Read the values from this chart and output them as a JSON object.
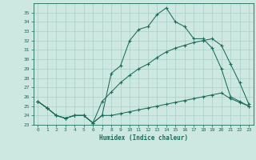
{
  "xlabel": "Humidex (Indice chaleur)",
  "xlim": [
    -0.5,
    23.5
  ],
  "ylim": [
    23,
    36
  ],
  "yticks": [
    23,
    24,
    25,
    26,
    27,
    28,
    29,
    30,
    31,
    32,
    33,
    34,
    35
  ],
  "xticks": [
    0,
    1,
    2,
    3,
    4,
    5,
    6,
    7,
    8,
    9,
    10,
    11,
    12,
    13,
    14,
    15,
    16,
    17,
    18,
    19,
    20,
    21,
    22,
    23
  ],
  "bg_color": "#cce8e0",
  "grid_color": "#aacfc8",
  "line_color": "#1a6b5a",
  "line1_y": [
    25.5,
    24.8,
    24.0,
    23.7,
    24.0,
    24.0,
    23.2,
    24.0,
    28.5,
    29.3,
    32.0,
    33.2,
    33.5,
    34.8,
    35.5,
    34.0,
    33.5,
    32.2,
    32.2,
    31.2,
    29.0,
    26.0,
    25.5,
    25.0
  ],
  "line2_y": [
    25.5,
    24.8,
    24.0,
    23.7,
    24.0,
    24.0,
    23.2,
    25.5,
    26.5,
    27.5,
    28.3,
    29.0,
    29.5,
    30.2,
    30.8,
    31.2,
    31.5,
    31.8,
    32.0,
    32.2,
    31.5,
    29.5,
    27.5,
    25.2
  ],
  "line3_y": [
    25.5,
    24.8,
    24.0,
    23.7,
    24.0,
    24.0,
    23.2,
    24.0,
    24.0,
    24.2,
    24.4,
    24.6,
    24.8,
    25.0,
    25.2,
    25.4,
    25.6,
    25.8,
    26.0,
    26.2,
    26.4,
    25.8,
    25.4,
    25.0
  ]
}
